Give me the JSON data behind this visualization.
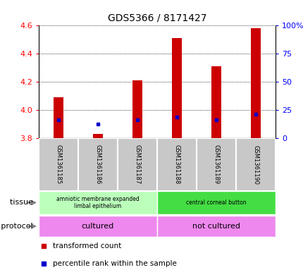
{
  "title": "GDS5366 / 8171427",
  "samples": [
    "GSM1361185",
    "GSM1361186",
    "GSM1361187",
    "GSM1361188",
    "GSM1361189",
    "GSM1361190"
  ],
  "bar_bottoms": [
    3.8,
    3.8,
    3.8,
    3.8,
    3.8,
    3.8
  ],
  "bar_tops": [
    4.09,
    3.83,
    4.21,
    4.51,
    4.31,
    4.58
  ],
  "blue_values": [
    3.93,
    3.9,
    3.93,
    3.95,
    3.93,
    3.97
  ],
  "ylim": [
    3.8,
    4.6
  ],
  "y_left_ticks": [
    3.8,
    4.0,
    4.2,
    4.4,
    4.6
  ],
  "y_right_ticks": [
    0,
    25,
    50,
    75,
    100
  ],
  "y_right_tick_positions": [
    3.8,
    4.0,
    4.2,
    4.4,
    4.6
  ],
  "bar_color": "#cc0000",
  "blue_color": "#0000cc",
  "tissue_labels": [
    "amniotic membrane expanded\nlimbal epithelium",
    "central corneal button"
  ],
  "tissue_colors": [
    "#bbffbb",
    "#44dd44"
  ],
  "tissue_starts": [
    0,
    3
  ],
  "tissue_ends": [
    3,
    6
  ],
  "protocol_labels": [
    "cultured",
    "not cultured"
  ],
  "protocol_color": "#ee88ee",
  "protocol_starts": [
    0,
    3
  ],
  "protocol_ends": [
    3,
    6
  ],
  "tissue_row_label": "tissue",
  "protocol_row_label": "growth protocol",
  "legend_items": [
    {
      "label": "transformed count",
      "color": "#cc0000"
    },
    {
      "label": "percentile rank within the sample",
      "color": "#0000cc"
    }
  ],
  "bar_width": 0.25,
  "sample_col_bg": "#c8c8c8"
}
